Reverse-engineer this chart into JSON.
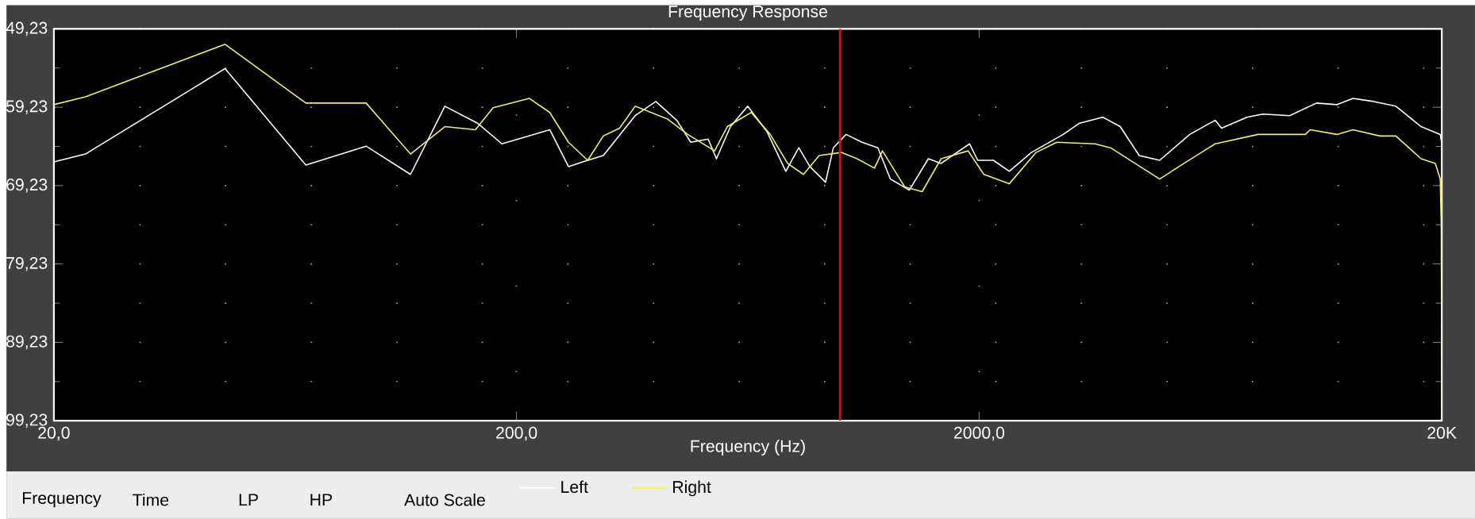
{
  "chart_data": {
    "type": "line",
    "title": "Frequency Response",
    "xlabel": "Frequency (Hz)",
    "log": "x",
    "grid": true,
    "legend": "bottom",
    "line_style": "solid",
    "marker": "none",
    "xlim": [
      20,
      20000
    ],
    "ylim": [
      99.23,
      49.23
    ],
    "xticks": [
      {
        "value": 20,
        "label": "20,0"
      },
      {
        "value": 200,
        "label": "200,0"
      },
      {
        "value": 2000,
        "label": "2000,0"
      },
      {
        "value": 20000,
        "label": "20K"
      }
    ],
    "yticks": [
      {
        "value": 49.23,
        "label": "49,23"
      },
      {
        "value": 59.23,
        "label": "59,23"
      },
      {
        "value": 69.23,
        "label": "69,23"
      },
      {
        "value": 79.23,
        "label": "79,23"
      },
      {
        "value": 89.23,
        "label": "89,23"
      },
      {
        "value": 99.23,
        "label": "99,23"
      }
    ],
    "ref_lines": [
      {
        "axis": "x",
        "value": 1000,
        "color": "#ff0000"
      }
    ],
    "annotations": [
      "Frequency",
      "Time",
      "LP",
      "HP",
      "Auto Scale"
    ],
    "series": [
      {
        "name": "Left",
        "color": "#ffffff",
        "x": [
          20,
          23.4,
          46.9,
          70.1,
          94.6,
          118,
          140,
          165,
          186,
          236,
          259,
          285,
          308,
          361,
          400,
          444,
          476,
          519,
          541,
          580,
          632,
          695,
          764,
          815,
          861,
          931,
          968,
          1031,
          1116,
          1208,
          1286,
          1413,
          1553,
          1655,
          1907,
          1986,
          2147,
          2323,
          2594,
          3039,
          3287,
          3699,
          4035,
          4436,
          4911,
          5705,
          6473,
          6683,
          7585,
          8204,
          9377,
          10720,
          11880,
          12850,
          14250,
          15910,
          18040,
          19850,
          20000
        ],
        "values": [
          66.2,
          65.2,
          54.3,
          66.6,
          64.2,
          67.8,
          59.1,
          61.3,
          63.9,
          62.1,
          66.8,
          66.0,
          65.4,
          60.3,
          58.5,
          60.9,
          63.7,
          63.3,
          65.8,
          61.7,
          59.1,
          62.3,
          67.4,
          64.4,
          66.8,
          68.8,
          64.4,
          62.7,
          63.7,
          64.4,
          68.4,
          69.8,
          65.8,
          66.4,
          63.9,
          66.0,
          66.0,
          67.4,
          65.0,
          62.7,
          61.3,
          60.5,
          61.7,
          65.4,
          66.0,
          62.7,
          60.9,
          61.9,
          60.5,
          60.1,
          60.3,
          58.7,
          58.9,
          58.1,
          58.5,
          59.1,
          61.7,
          62.7,
          63.9
        ]
      },
      {
        "name": "Right",
        "color": "#f0f060",
        "x": [
          20,
          23.4,
          46.9,
          70.1,
          94.6,
          118,
          140,
          163,
          178,
          213,
          236,
          259,
          285,
          308,
          334,
          361,
          423,
          469,
          536,
          571,
          643,
          707,
          771,
          834,
          902,
          1007,
          1089,
          1188,
          1236,
          1381,
          1506,
          1655,
          1893,
          2047,
          2323,
          2655,
          2943,
          3557,
          3845,
          4911,
          5406,
          6473,
          8015,
          10140,
          10390,
          11880,
          12850,
          14700,
          15910,
          18040,
          19370,
          19850,
          19950,
          20000
        ],
        "values": [
          58.9,
          57.9,
          51.2,
          58.7,
          58.7,
          65.2,
          61.7,
          62.1,
          59.3,
          58.1,
          59.9,
          63.7,
          66.0,
          62.9,
          61.9,
          59.1,
          60.7,
          62.7,
          64.8,
          61.7,
          59.9,
          62.7,
          66.4,
          67.8,
          65.4,
          65.0,
          65.8,
          67.0,
          64.8,
          69.4,
          70.0,
          65.8,
          64.8,
          67.8,
          69.0,
          65.0,
          63.7,
          63.9,
          64.4,
          68.4,
          66.8,
          63.9,
          62.7,
          62.7,
          62.1,
          62.7,
          62.1,
          62.9,
          62.9,
          65.8,
          66.4,
          68.4,
          74.4,
          99.23
        ]
      }
    ]
  }
}
